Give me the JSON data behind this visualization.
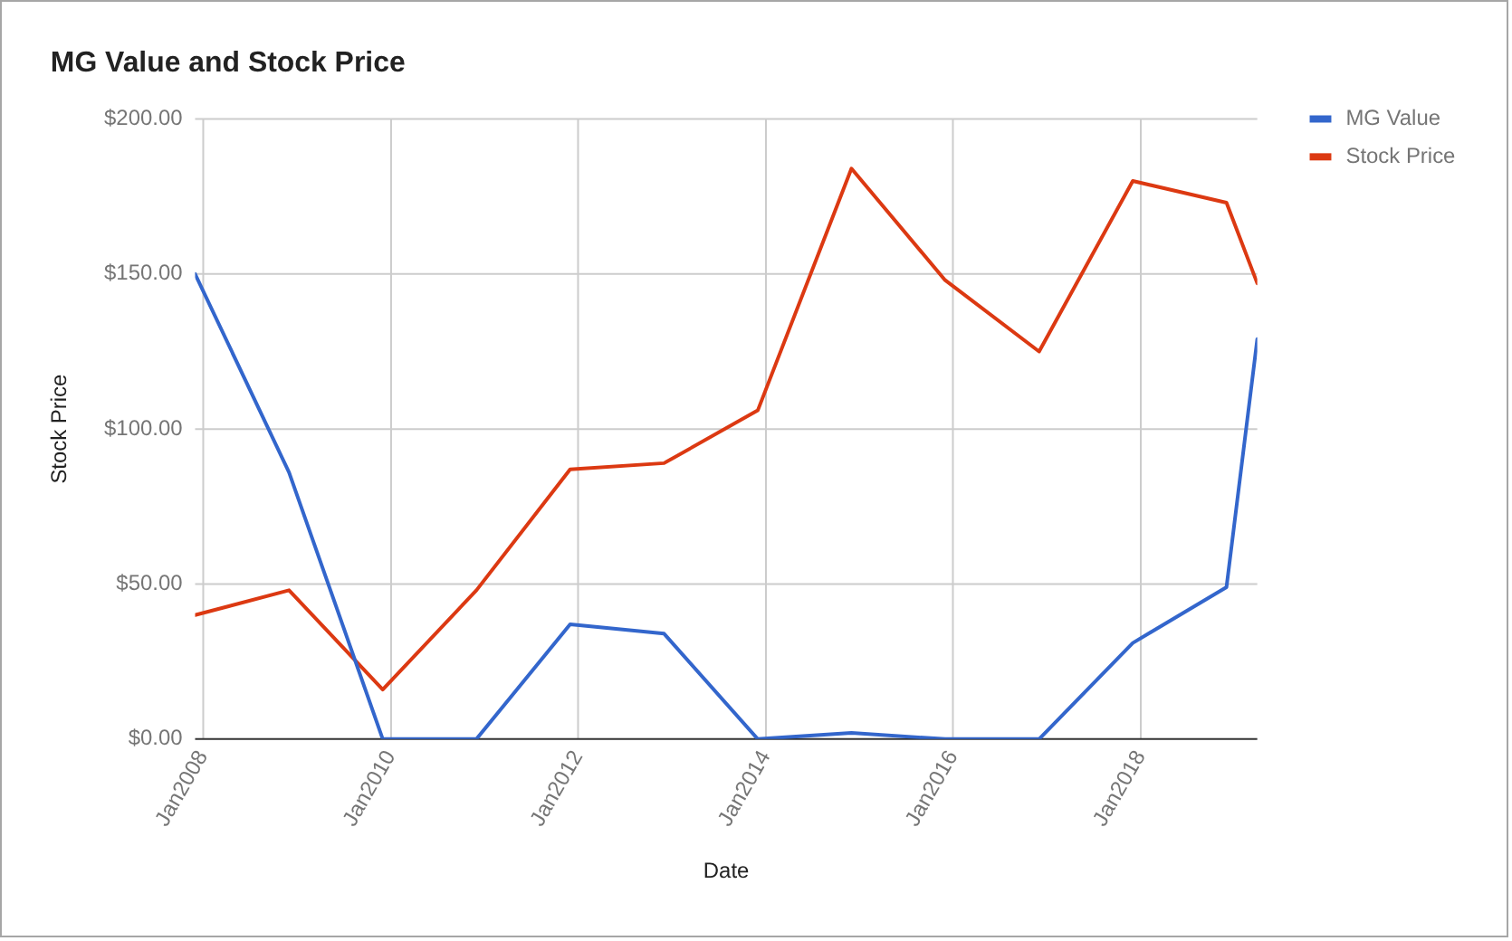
{
  "chart_data": {
    "type": "line",
    "title": "MG Value and Stock Price",
    "xlabel": "Date",
    "ylabel": "Stock Price",
    "x": [
      "2007-12",
      "2008-12",
      "2009-12",
      "2010-12",
      "2011-12",
      "2012-12",
      "2013-12",
      "2014-12",
      "2015-12",
      "2016-12",
      "2017-12",
      "2018-12",
      "2019-03-31"
    ],
    "series": [
      {
        "name": "MG Value",
        "color": "#3366cc",
        "values": [
          150,
          86,
          0,
          0,
          37,
          34,
          0,
          2,
          0,
          0,
          31,
          49,
          129
        ]
      },
      {
        "name": "Stock Price",
        "color": "#dc3912",
        "values": [
          40,
          48,
          16,
          48,
          87,
          89,
          106,
          184,
          148,
          125,
          180,
          173,
          147
        ]
      }
    ],
    "xlim": [
      "2007-12",
      "2019-03-31"
    ],
    "xticks": [
      {
        "value": "2008-01",
        "label": "Jan2008"
      },
      {
        "value": "2010-01",
        "label": "Jan2010"
      },
      {
        "value": "2012-01",
        "label": "Jan2012"
      },
      {
        "value": "2014-01",
        "label": "Jan2014"
      },
      {
        "value": "2016-01",
        "label": "Jan2016"
      },
      {
        "value": "2018-01",
        "label": "Jan2018"
      }
    ],
    "ylim": [
      0,
      200
    ],
    "yticks": [
      {
        "value": 0,
        "label": "$0.00"
      },
      {
        "value": 50,
        "label": "$50.00"
      },
      {
        "value": 100,
        "label": "$100.00"
      },
      {
        "value": 150,
        "label": "$150.00"
      },
      {
        "value": 200,
        "label": "$200.00"
      }
    ],
    "grid": true,
    "legend": "top right",
    "line_style": "solid"
  }
}
